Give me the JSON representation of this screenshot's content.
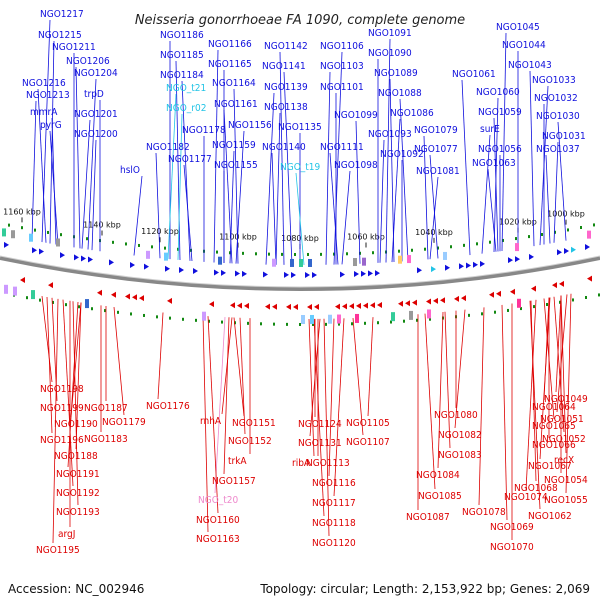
{
  "title": "Neisseria gonorrhoeae FA 1090, complete genome",
  "footer": {
    "accession": "Accession: NC_002946",
    "topology": "Topology: circular; Length: 2,153,922 bp; Genes: 2,069"
  },
  "colors": {
    "forward": "#1010dd",
    "reverse": "#dd0000",
    "rna": "#22c4e6",
    "rna_rev": "#ee88cc",
    "backbone": "#888888",
    "tick": "#118811"
  },
  "scale_ticks": [
    {
      "label": "1160 kbp",
      "kbp": 1160
    },
    {
      "label": "1140 kbp",
      "kbp": 1140
    },
    {
      "label": "1120 kbp",
      "kbp": 1120
    },
    {
      "label": "1100 kbp",
      "kbp": 1100
    },
    {
      "label": "1080 kbp",
      "kbp": 1080
    },
    {
      "label": "1060 kbp",
      "kbp": 1060
    },
    {
      "label": "1040 kbp",
      "kbp": 1040
    },
    {
      "label": "1020 kbp",
      "kbp": 1020
    },
    {
      "label": "1000 kbp",
      "kbp": 1000
    }
  ],
  "top_labels": [
    "NGO1217",
    "NGO1215",
    "NGO1211",
    "NGO1206",
    "NGO1216",
    "NGO1204",
    "NGO1213",
    "trpD",
    "mmrA",
    "pyrG",
    "NGO1201",
    "NGO1200",
    "NGO1186",
    "NGO1185",
    "NGO1184",
    "NGO_t21",
    "NGO_r02",
    "NGO1178",
    "NGO1182",
    "NGO1177",
    "hslO",
    "NGO1166",
    "NGO1165",
    "NGO1164",
    "NGO1161",
    "NGO1156",
    "NGO1159",
    "NGO1155",
    "NGO1142",
    "NGO1141",
    "NGO1139",
    "NGO1138",
    "NGO1135",
    "NGO1140",
    "NGO_t19",
    "NGO1106",
    "NGO1103",
    "NGO1101",
    "NGO1099",
    "NGO1111",
    "NGO1098",
    "NGO1091",
    "NGO1090",
    "NGO1089",
    "NGO1088",
    "NGO1086",
    "NGO1093",
    "NGO1092",
    "NGO1079",
    "NGO1077",
    "NGO1081",
    "NGO1045",
    "NGO1044",
    "NGO1043",
    "NGO1061",
    "NGO1033",
    "NGO1060",
    "NGO1032",
    "NGO1059",
    "NGO1030",
    "surE",
    "NGO1031",
    "NGO1056",
    "NGO1037",
    "NGO1063"
  ],
  "bottom_labels": [
    "NGO1198",
    "NGO1199",
    "NGO1187",
    "NGO1176",
    "NGO1190",
    "NGO1179",
    "NGO1196",
    "NGO1183",
    "NGO1188",
    "NGO1191",
    "NGO1192",
    "NGO1193",
    "argJ",
    "NGO1195",
    "rnhA",
    "NGO1151",
    "NGO1152",
    "trkA",
    "NGO1157",
    "NGO_t20",
    "NGO1160",
    "NGO1163",
    "NGO1124",
    "NGO1105",
    "NGO1131",
    "NGO1107",
    "ribA",
    "NGO1113",
    "NGO1116",
    "NGO1117",
    "NGO1118",
    "NGO1120",
    "NGO1080",
    "NGO1064",
    "NGO1082",
    "NGO1065",
    "NGO1083",
    "NGO1066",
    "NGO1084",
    "NGO1067",
    "NGO1085",
    "NGO1068",
    "NGO1087",
    "NGO1078",
    "NGO1074",
    "NGO1062",
    "NGO1069",
    "NGO1070",
    "NGO1049",
    "NGO1051",
    "NGO1052",
    "recX",
    "NGO1054",
    "NGO1055"
  ]
}
